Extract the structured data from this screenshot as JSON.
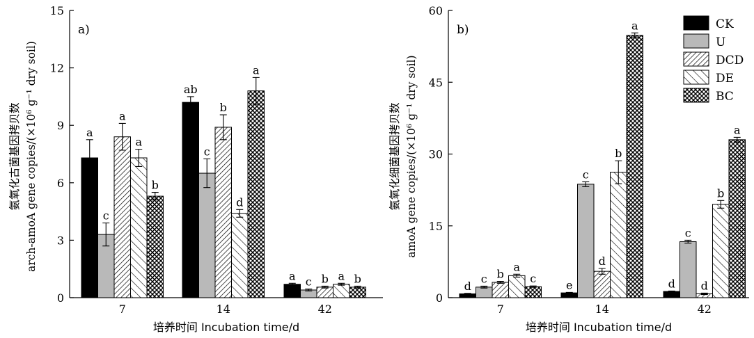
{
  "legend": {
    "entries": [
      {
        "name": "CK",
        "pattern": "solid"
      },
      {
        "name": "U",
        "pattern": "grey"
      },
      {
        "name": "DCD",
        "pattern": "diag-fine"
      },
      {
        "name": "DE",
        "pattern": "diag-back"
      },
      {
        "name": "BC",
        "pattern": "cross"
      }
    ]
  },
  "chart_data": [
    {
      "type": "bar",
      "panel_label": "a)",
      "categories": [
        "7",
        "14",
        "42"
      ],
      "xlabel": "培养时间 Incubation time/d",
      "ylabel_cn": "氨氧化古菌基因拷贝数",
      "ylabel_en": "arch-amoA gene copies/(×10⁶ g⁻¹ dry soil)",
      "ylim": [
        0,
        15
      ],
      "yticks": [
        "0",
        "3",
        "6",
        "9",
        "12",
        "15"
      ],
      "series": [
        {
          "name": "CK",
          "values": [
            7.3,
            10.2,
            0.7
          ],
          "errors": [
            0.95,
            0.3,
            0.05
          ],
          "letters": [
            "a",
            "ab",
            "a"
          ]
        },
        {
          "name": "U",
          "values": [
            3.3,
            6.5,
            0.4
          ],
          "errors": [
            0.6,
            0.75,
            0.05
          ],
          "letters": [
            "c",
            "c",
            "c"
          ]
        },
        {
          "name": "DCD",
          "values": [
            8.4,
            8.9,
            0.55
          ],
          "errors": [
            0.7,
            0.65,
            0.05
          ],
          "letters": [
            "a",
            "b",
            "b"
          ]
        },
        {
          "name": "DE",
          "values": [
            7.3,
            4.4,
            0.7
          ],
          "errors": [
            0.45,
            0.2,
            0.05
          ],
          "letters": [
            "a",
            "d",
            "a"
          ]
        },
        {
          "name": "BC",
          "values": [
            5.3,
            10.8,
            0.55
          ],
          "errors": [
            0.2,
            0.7,
            0.05
          ],
          "letters": [
            "b",
            "a",
            "b"
          ]
        }
      ]
    },
    {
      "type": "bar",
      "panel_label": "b)",
      "categories": [
        "7",
        "14",
        "42"
      ],
      "xlabel": "培养时间 Incubation time/d",
      "ylabel_cn": "氨氧化细菌基因拷贝数",
      "ylabel_en": "amoA gene copies/(×10⁶ g⁻¹ dry soil)",
      "ylim": [
        0,
        60
      ],
      "yticks": [
        "0",
        "15",
        "30",
        "45",
        "60"
      ],
      "series": [
        {
          "name": "CK",
          "values": [
            0.8,
            1.0,
            1.3
          ],
          "errors": [
            0.1,
            0.1,
            0.1
          ],
          "letters": [
            "d",
            "e",
            "d"
          ]
        },
        {
          "name": "U",
          "values": [
            2.2,
            23.7,
            11.7
          ],
          "errors": [
            0.2,
            0.5,
            0.3
          ],
          "letters": [
            "c",
            "c",
            "c"
          ]
        },
        {
          "name": "DCD",
          "values": [
            3.2,
            5.5,
            0.8
          ],
          "errors": [
            0.2,
            0.6,
            0.15
          ],
          "letters": [
            "b",
            "d",
            "d"
          ]
        },
        {
          "name": "DE",
          "values": [
            4.6,
            26.2,
            19.5
          ],
          "errors": [
            0.3,
            2.4,
            0.8
          ],
          "letters": [
            "a",
            "b",
            "b"
          ]
        },
        {
          "name": "BC",
          "values": [
            2.3,
            54.8,
            33.0
          ],
          "errors": [
            0.15,
            0.5,
            0.5
          ],
          "letters": [
            "c",
            "a",
            "a"
          ]
        }
      ]
    }
  ]
}
